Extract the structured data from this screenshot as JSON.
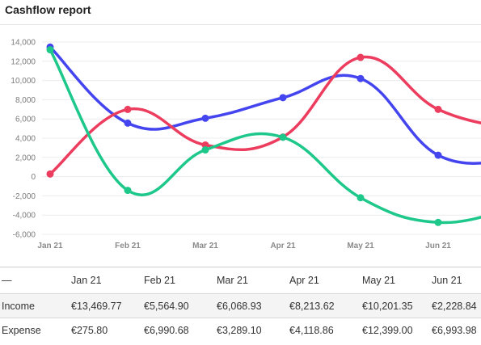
{
  "header": {
    "title": "Cashflow report"
  },
  "chart_data": {
    "type": "line",
    "title": "",
    "xlabel": "",
    "ylabel": "",
    "categories": [
      "Jan 21",
      "Feb 21",
      "Mar 21",
      "Apr 21",
      "May 21",
      "Jun 21"
    ],
    "ylim": [
      -6000,
      14000
    ],
    "yticks": [
      14000,
      12000,
      10000,
      8000,
      6000,
      4000,
      2000,
      0,
      -2000,
      -4000,
      -6000
    ],
    "ytick_labels": [
      "14,000",
      "12,000",
      "10,000",
      "8,000",
      "6,000",
      "4,000",
      "2,000",
      "0",
      "-2,000",
      "-4,000",
      "-6,000"
    ],
    "grid": true,
    "smooth": true,
    "series": [
      {
        "name": "Income",
        "color": "#4545f0",
        "values": [
          13469.77,
          5564.9,
          6068.93,
          8213.62,
          10201.35,
          2228.84
        ]
      },
      {
        "name": "Expense",
        "color": "#ec3d5f",
        "values": [
          275.8,
          6990.68,
          3289.1,
          4118.86,
          12399.0,
          6993.98
        ]
      },
      {
        "color": "#1dc88a",
        "values": [
          13193.97,
          -1425.78,
          2779.83,
          4094.76,
          -2197.65,
          -4765.14
        ]
      }
    ]
  },
  "table": {
    "corner": "—",
    "columns": [
      "Jan 21",
      "Feb 21",
      "Mar 21",
      "Apr 21",
      "May 21",
      "Jun 21"
    ],
    "rows": [
      {
        "label": "Income",
        "cells": [
          "€13,469.77",
          "€5,564.90",
          "€6,068.93",
          "€8,213.62",
          "€10,201.35",
          "€2,228.84"
        ]
      },
      {
        "label": "Expense",
        "cells": [
          "€275.80",
          "€6,990.68",
          "€3,289.10",
          "€4,118.86",
          "€12,399.00",
          "€6,993.98"
        ]
      }
    ]
  }
}
